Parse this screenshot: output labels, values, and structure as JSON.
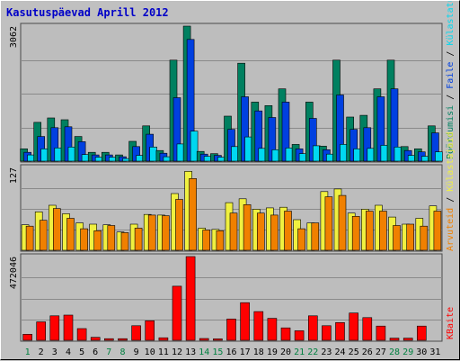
{
  "title": "Kasutuspäevad Aprill 2012",
  "colors": {
    "background": "#c0c0c0",
    "panel": "#bdbdbd",
    "title": "#0000c8",
    "weekday_label": "#000000",
    "weekend_label": "#008040",
    "visitors": "#008060",
    "pages": "#0040e0",
    "files": "#00d8f0",
    "hits": "#f0f040",
    "sessions": "#f08000",
    "bytes": "#ff0000"
  },
  "chart_data": [
    {
      "type": "bar",
      "panel": "top",
      "y_tick_label": "3062",
      "ylim": [
        0,
        3062
      ],
      "grid": true,
      "categories": [
        "1",
        "2",
        "3",
        "4",
        "5",
        "6",
        "7",
        "8",
        "9",
        "10",
        "11",
        "12",
        "13",
        "14",
        "15",
        "16",
        "17",
        "18",
        "19",
        "20",
        "21",
        "22",
        "23",
        "24",
        "25",
        "26",
        "27",
        "28",
        "29",
        "30",
        "31"
      ],
      "weekend_days": [
        "1",
        "7",
        "8",
        "14",
        "15",
        "21",
        "22",
        "28",
        "29"
      ],
      "series_labels": [
        "Pöördumisi",
        "Faile",
        "Külastatud"
      ],
      "series_colors": [
        "#008060",
        "#0040e0",
        "#00d8f0"
      ],
      "series": [
        {
          "values": [
            280,
            880,
            980,
            940,
            560,
            200,
            200,
            140,
            450,
            800,
            240,
            2290,
            3062,
            220,
            170,
            1020,
            2220,
            1340,
            1260,
            1640,
            380,
            1340,
            340,
            2290,
            1000,
            1040,
            1640,
            2290,
            330,
            280,
            800
          ]
        },
        {
          "values": [
            200,
            560,
            760,
            780,
            440,
            140,
            140,
            100,
            330,
            610,
            180,
            1440,
            2760,
            160,
            130,
            720,
            1460,
            1140,
            990,
            1340,
            280,
            970,
            260,
            1500,
            720,
            760,
            1460,
            1640,
            240,
            210,
            640
          ]
        },
        {
          "values": [
            140,
            280,
            300,
            320,
            150,
            90,
            90,
            60,
            130,
            320,
            100,
            390,
            680,
            110,
            90,
            330,
            550,
            290,
            260,
            300,
            170,
            350,
            160,
            380,
            280,
            290,
            360,
            320,
            130,
            110,
            210
          ]
        }
      ]
    },
    {
      "type": "bar",
      "panel": "middle",
      "y_tick_label": "127",
      "ylim": [
        0,
        127
      ],
      "grid": true,
      "categories": [
        "1",
        "2",
        "3",
        "4",
        "5",
        "6",
        "7",
        "8",
        "9",
        "10",
        "11",
        "12",
        "13",
        "14",
        "15",
        "16",
        "17",
        "18",
        "19",
        "20",
        "21",
        "22",
        "23",
        "24",
        "25",
        "26",
        "27",
        "28",
        "29",
        "30",
        "31"
      ],
      "series_labels": [
        "Külastajaid",
        "Arvuteid"
      ],
      "series_colors": [
        "#f0f040",
        "#f08000"
      ],
      "series": [
        {
          "values": [
            39,
            59,
            69,
            56,
            42,
            40,
            39,
            28,
            40,
            55,
            54,
            87,
            121,
            34,
            32,
            73,
            79,
            63,
            65,
            66,
            47,
            42,
            90,
            94,
            57,
            63,
            69,
            51,
            40,
            49,
            68
          ]
        },
        {
          "values": [
            37,
            46,
            64,
            49,
            33,
            30,
            38,
            27,
            34,
            54,
            53,
            78,
            110,
            31,
            30,
            57,
            70,
            57,
            54,
            60,
            33,
            42,
            82,
            84,
            52,
            60,
            60,
            38,
            40,
            37,
            60
          ]
        }
      ]
    },
    {
      "type": "bar",
      "panel": "bottom",
      "y_tick_label": "472046",
      "ylim": [
        0,
        472046
      ],
      "grid": true,
      "categories": [
        "1",
        "2",
        "3",
        "4",
        "5",
        "6",
        "7",
        "8",
        "9",
        "10",
        "11",
        "12",
        "13",
        "14",
        "15",
        "16",
        "17",
        "18",
        "19",
        "20",
        "21",
        "22",
        "23",
        "24",
        "25",
        "26",
        "27",
        "28",
        "29",
        "30",
        "31"
      ],
      "series_labels": [
        "KBaite"
      ],
      "series_colors": [
        "#ff0000"
      ],
      "series": [
        {
          "values": [
            34000,
            104000,
            138000,
            142000,
            66000,
            17000,
            9000,
            9000,
            82000,
            110000,
            14000,
            305000,
            472046,
            10000,
            8000,
            120000,
            212000,
            162000,
            124000,
            70000,
            54000,
            138000,
            82000,
            100000,
            154000,
            128000,
            80000,
            12000,
            12000,
            80000,
            0
          ]
        }
      ]
    }
  ],
  "right_labels": {
    "top": [
      "Pöördumisi",
      "Faile",
      "Külastatud"
    ],
    "top_separator": " / ",
    "middle": [
      "Arvuteid",
      "Külastajaid"
    ],
    "middle_separator": " / ",
    "bottom": "KBaite"
  }
}
